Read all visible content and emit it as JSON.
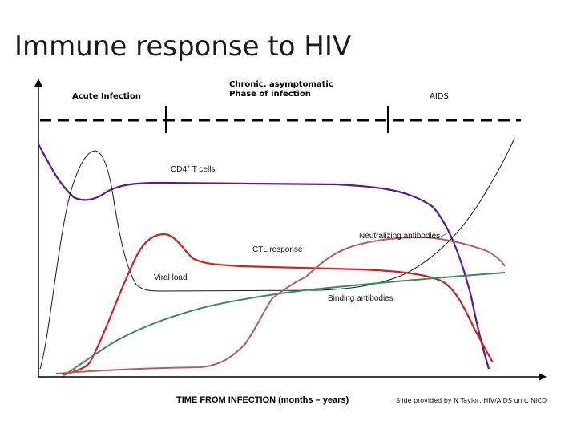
{
  "title": "Immune response to HIV",
  "stages": {
    "acute": "Acute Infection",
    "chronic": "Chronic, asymptomatic\nPhase of infection",
    "aids": "AIDS"
  },
  "curve_labels": {
    "cd4": "CD4+ T cells",
    "neutralizing": "Neutralizing antibodies",
    "ctl": "CTL response",
    "viral_load": "Viral load",
    "binding": "Binding antibodies"
  },
  "x_axis_label": "TIME FROM INFECTION (months – years)",
  "credit": "Slide provided by N Taylor, HIV/AIDS unit, NICD",
  "colors": {
    "cd4": "#5b1a8c",
    "viral_load": "#1a1a1a",
    "ctl": "#d42020",
    "binding": "#3a8a5a",
    "neutralizing": "#b06060",
    "axis": "#000000"
  }
}
